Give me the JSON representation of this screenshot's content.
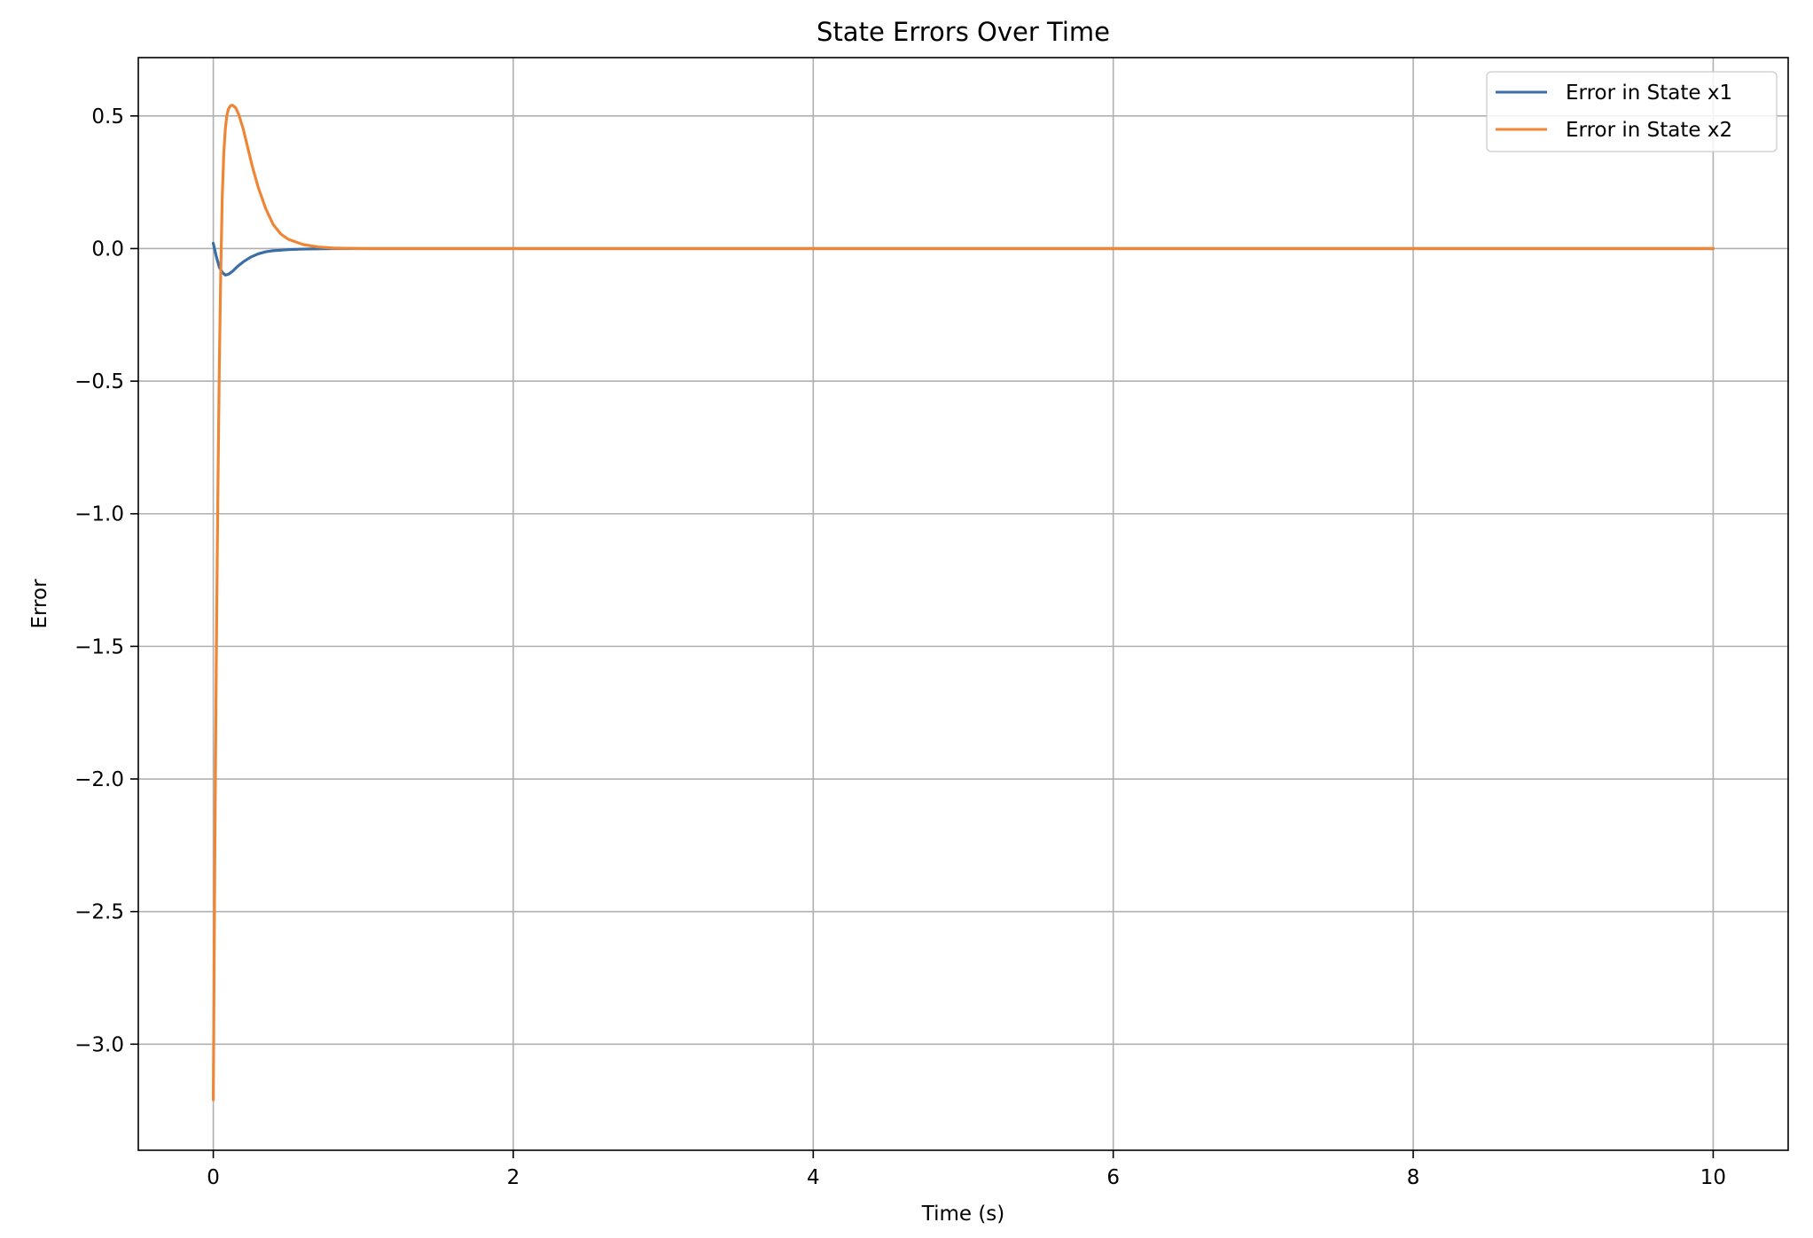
{
  "chart_data": {
    "type": "line",
    "title": "State Errors Over Time",
    "xlabel": "Time (s)",
    "ylabel": "Error",
    "xlim": [
      -0.5,
      10.5
    ],
    "ylim": [
      -3.4,
      0.72
    ],
    "xticks": [
      0,
      2,
      4,
      6,
      8,
      10
    ],
    "xtick_labels": [
      "0",
      "2",
      "4",
      "6",
      "8",
      "10"
    ],
    "yticks": [
      0.5,
      0.0,
      -0.5,
      -1.0,
      -1.5,
      -2.0,
      -2.5,
      -3.0
    ],
    "ytick_labels": [
      "0.5",
      "0.0",
      "−0.5",
      "−1.0",
      "−1.5",
      "−2.0",
      "−2.5",
      "−3.0"
    ],
    "grid": true,
    "legend_position": "top-right",
    "series": [
      {
        "name": "Error in State x1",
        "color": "#3b6ea5",
        "x": [
          0,
          0.02,
          0.04,
          0.06,
          0.08,
          0.1,
          0.13,
          0.16,
          0.2,
          0.25,
          0.3,
          0.35,
          0.4,
          0.5,
          0.6,
          0.7,
          0.8,
          1.0,
          1.5,
          2,
          3,
          4,
          5,
          6,
          7,
          8,
          9,
          10
        ],
        "y": [
          0.02,
          -0.03,
          -0.07,
          -0.09,
          -0.1,
          -0.097,
          -0.085,
          -0.068,
          -0.05,
          -0.032,
          -0.02,
          -0.012,
          -0.008,
          -0.004,
          -0.002,
          -0.001,
          0,
          0,
          0,
          0,
          0,
          0,
          0,
          0,
          0,
          0,
          0,
          0
        ]
      },
      {
        "name": "Error in State x2",
        "color": "#ef8636",
        "x": [
          0,
          0.01,
          0.02,
          0.03,
          0.04,
          0.05,
          0.06,
          0.07,
          0.08,
          0.09,
          0.1,
          0.11,
          0.12,
          0.13,
          0.15,
          0.17,
          0.2,
          0.23,
          0.26,
          0.3,
          0.35,
          0.4,
          0.45,
          0.5,
          0.6,
          0.7,
          0.8,
          0.9,
          1.0,
          1.5,
          2,
          3,
          4,
          5,
          6,
          7,
          8,
          9,
          10
        ],
        "y": [
          -3.21,
          -2.3,
          -1.55,
          -0.95,
          -0.45,
          -0.08,
          0.2,
          0.36,
          0.45,
          0.5,
          0.525,
          0.535,
          0.54,
          0.54,
          0.53,
          0.505,
          0.45,
          0.38,
          0.31,
          0.23,
          0.15,
          0.09,
          0.055,
          0.035,
          0.015,
          0.006,
          0.002,
          0.001,
          0,
          0,
          0,
          0,
          0,
          0,
          0,
          0,
          0,
          0,
          0
        ]
      }
    ]
  }
}
